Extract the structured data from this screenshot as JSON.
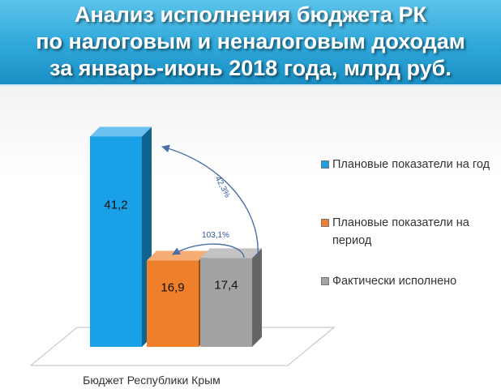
{
  "header": {
    "title_lines": [
      "Анализ исполнения бюджета РК",
      "по налоговым и неналоговым доходам",
      "за январь-июнь 2018 года, млрд руб."
    ]
  },
  "colors": {
    "header_bg": "#2ea7d9",
    "planned_year": "#1aa0e6",
    "planned_period": "#f07f2b",
    "actual": "#a3a3a3",
    "arrow": "#4a6fa5"
  },
  "chart_data": {
    "type": "bar",
    "categories": [
      "Бюджет Республики Крым"
    ],
    "series": [
      {
        "name": "Плановые показатели на год",
        "values": [
          41.2
        ],
        "label": "41,2"
      },
      {
        "name": "Плановые показатели на период",
        "values": [
          16.9
        ],
        "label": "16,9"
      },
      {
        "name": "Фактически исполнено",
        "values": [
          17.4
        ],
        "label": "17,4"
      }
    ],
    "annotations": [
      {
        "text": "42,3%",
        "from_series": 2,
        "to_series": 0
      },
      {
        "text": "103,1%",
        "from_series": 2,
        "to_series": 1
      }
    ],
    "legend_position": "right",
    "xlabel": "",
    "ylabel": "",
    "ylim": [
      0,
      45
    ],
    "grid": false
  }
}
